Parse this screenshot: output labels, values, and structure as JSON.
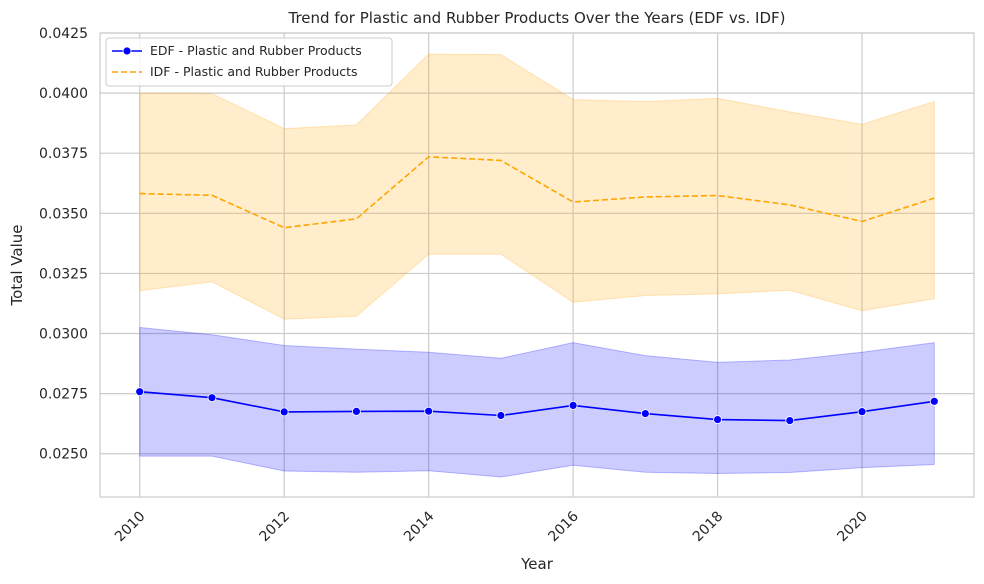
{
  "chart_data": {
    "type": "line",
    "title": "Trend for Plastic and Rubber Products Over the Years (EDF vs. IDF)",
    "xlabel": "Year",
    "ylabel": "Total Value",
    "xlim": [
      2009.45,
      2021.55
    ],
    "ylim": [
      0.0232,
      0.0425
    ],
    "x_ticks": [
      2010,
      2012,
      2014,
      2016,
      2018,
      2020
    ],
    "y_ticks": [
      0.025,
      0.0275,
      0.03,
      0.0325,
      0.035,
      0.0375,
      0.04,
      0.0425
    ],
    "x_tick_labels": [
      "2010",
      "2012",
      "2014",
      "2016",
      "2018",
      "2020"
    ],
    "y_tick_labels": [
      "0.0250",
      "0.0275",
      "0.0300",
      "0.0325",
      "0.0350",
      "0.0375",
      "0.0400",
      "0.0425"
    ],
    "grid": true,
    "legend_position": "top-left",
    "x": [
      2010,
      2011,
      2012,
      2013,
      2014,
      2015,
      2016,
      2017,
      2018,
      2019,
      2020,
      2021
    ],
    "series": [
      {
        "name": "EDF - Plastic and Rubber Products",
        "color": "#0000ff",
        "line_style": "solid",
        "marker": "circle",
        "values": [
          0.02758,
          0.02733,
          0.02674,
          0.02676,
          0.02677,
          0.02659,
          0.02701,
          0.02667,
          0.02642,
          0.02638,
          0.02675,
          0.02718
        ],
        "ci_lower": [
          0.0249,
          0.0249,
          0.02428,
          0.02423,
          0.02429,
          0.02403,
          0.02452,
          0.02423,
          0.02418,
          0.02422,
          0.02442,
          0.02455
        ],
        "ci_upper": [
          0.03025,
          0.02995,
          0.0295,
          0.02935,
          0.02922,
          0.02897,
          0.02962,
          0.02908,
          0.0288,
          0.0289,
          0.02922,
          0.02962
        ]
      },
      {
        "name": "IDF - Plastic and Rubber Products",
        "color": "#ffa500",
        "line_style": "dashed",
        "marker": "none",
        "values": [
          0.03582,
          0.03575,
          0.0344,
          0.03477,
          0.03735,
          0.0372,
          0.03547,
          0.03568,
          0.03574,
          0.03535,
          0.03466,
          0.03563
        ],
        "ci_lower": [
          0.03178,
          0.03215,
          0.0306,
          0.03072,
          0.0333,
          0.0333,
          0.0313,
          0.03158,
          0.03165,
          0.0318,
          0.03095,
          0.03145
        ],
        "ci_upper": [
          0.04,
          0.03998,
          0.03852,
          0.03868,
          0.04162,
          0.0416,
          0.03973,
          0.03965,
          0.03978,
          0.03922,
          0.0387,
          0.03965
        ]
      }
    ]
  }
}
